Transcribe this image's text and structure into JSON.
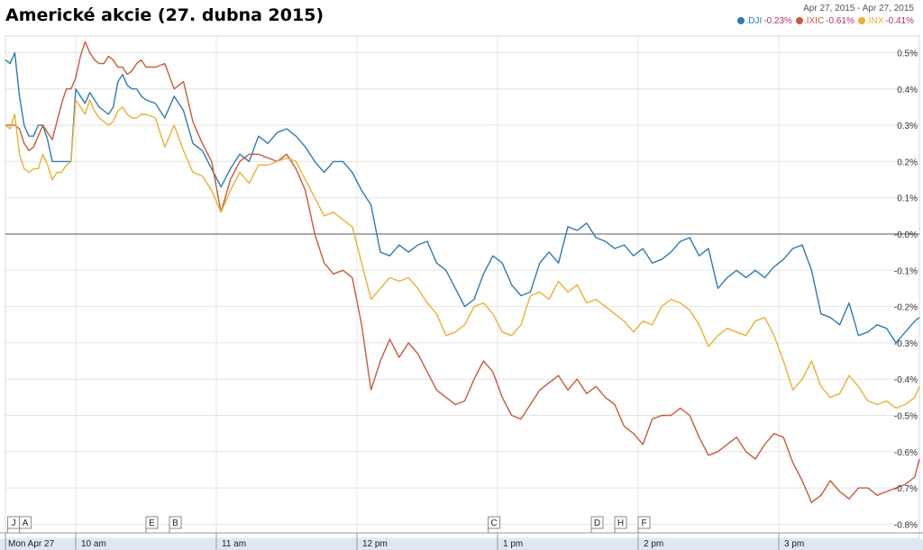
{
  "chart_data": {
    "type": "line",
    "title": "Americké akcie (27. dubna 2015)",
    "date_range": "Apr 27, 2015  -  Apr 27, 2015",
    "y_ticks": [
      "0.5%",
      "0.4%",
      "0.3%",
      "0.2%",
      "0.1%",
      "-0.0%",
      "-0.1%",
      "-0.2%",
      "-0.3%",
      "-0.4%",
      "-0.5%",
      "-0.6%",
      "-0.7%",
      "-0.8%"
    ],
    "y_tick_values": [
      0.5,
      0.4,
      0.3,
      0.2,
      0.1,
      0.0,
      -0.1,
      -0.2,
      -0.3,
      -0.4,
      -0.5,
      -0.6,
      -0.7,
      -0.8
    ],
    "ylim": [
      -0.85,
      0.56
    ],
    "x_ticks": [
      {
        "label": "Mon Apr 27",
        "t": 0
      },
      {
        "label": "10 am",
        "t": 30
      },
      {
        "label": "11 am",
        "t": 90
      },
      {
        "label": "12 pm",
        "t": 150
      },
      {
        "label": "1 pm",
        "t": 210
      },
      {
        "label": "2 pm",
        "t": 270
      },
      {
        "label": "3 pm",
        "t": 330
      }
    ],
    "x_unit": "minutes since 9:30 am",
    "xlim": [
      0,
      390
    ],
    "flags": [
      {
        "label": "J",
        "t": 1
      },
      {
        "label": "A",
        "t": 6
      },
      {
        "label": "E",
        "t": 60
      },
      {
        "label": "B",
        "t": 70
      },
      {
        "label": "C",
        "t": 206
      },
      {
        "label": "D",
        "t": 250
      },
      {
        "label": "H",
        "t": 260
      },
      {
        "label": "F",
        "t": 270
      }
    ],
    "grid": true,
    "legend_position": "top-right",
    "series": [
      {
        "name": ".DJI",
        "change": "-0.23%",
        "color": "#2e7bb4",
        "x": [
          0,
          2,
          4,
          6,
          8,
          10,
          12,
          14,
          16,
          18,
          20,
          22,
          24,
          26,
          28,
          30,
          32,
          34,
          36,
          38,
          40,
          42,
          44,
          46,
          48,
          50,
          52,
          54,
          56,
          58,
          60,
          64,
          68,
          72,
          76,
          80,
          84,
          88,
          92,
          96,
          100,
          104,
          108,
          112,
          116,
          120,
          124,
          128,
          132,
          136,
          140,
          144,
          148,
          152,
          156,
          160,
          164,
          168,
          172,
          176,
          180,
          184,
          188,
          192,
          196,
          200,
          204,
          208,
          212,
          216,
          220,
          224,
          228,
          232,
          236,
          240,
          244,
          248,
          252,
          256,
          260,
          264,
          268,
          272,
          276,
          280,
          284,
          288,
          292,
          296,
          300,
          304,
          308,
          312,
          316,
          320,
          324,
          328,
          332,
          336,
          340,
          344,
          348,
          352,
          356,
          360,
          364,
          368,
          372,
          376,
          380,
          384,
          388,
          390
        ],
        "values": [
          0.48,
          0.47,
          0.5,
          0.38,
          0.3,
          0.27,
          0.27,
          0.3,
          0.3,
          0.26,
          0.2,
          0.2,
          0.2,
          0.2,
          0.2,
          0.4,
          0.38,
          0.36,
          0.39,
          0.37,
          0.35,
          0.34,
          0.33,
          0.35,
          0.42,
          0.44,
          0.41,
          0.4,
          0.4,
          0.38,
          0.37,
          0.36,
          0.32,
          0.38,
          0.34,
          0.25,
          0.23,
          0.18,
          0.13,
          0.18,
          0.22,
          0.2,
          0.27,
          0.25,
          0.28,
          0.29,
          0.27,
          0.24,
          0.2,
          0.17,
          0.2,
          0.2,
          0.17,
          0.12,
          0.08,
          -0.05,
          -0.06,
          -0.03,
          -0.05,
          -0.03,
          -0.02,
          -0.08,
          -0.1,
          -0.15,
          -0.2,
          -0.18,
          -0.11,
          -0.06,
          -0.08,
          -0.14,
          -0.17,
          -0.16,
          -0.08,
          -0.05,
          -0.08,
          0.02,
          0.01,
          0.03,
          -0.01,
          -0.02,
          -0.04,
          -0.03,
          -0.06,
          -0.04,
          -0.08,
          -0.07,
          -0.05,
          -0.02,
          -0.01,
          -0.06,
          -0.04,
          -0.15,
          -0.12,
          -0.1,
          -0.12,
          -0.1,
          -0.12,
          -0.09,
          -0.07,
          -0.04,
          -0.03,
          -0.1,
          -0.22,
          -0.23,
          -0.25,
          -0.19,
          -0.28,
          -0.27,
          -0.25,
          -0.26,
          -0.3,
          -0.27,
          -0.24,
          -0.23
        ]
      },
      {
        "name": ".IXIC",
        "change": "-0.61%",
        "color": "#c75b39",
        "x": [
          0,
          2,
          4,
          6,
          8,
          10,
          12,
          14,
          16,
          18,
          20,
          22,
          24,
          26,
          28,
          30,
          32,
          34,
          36,
          38,
          40,
          42,
          44,
          46,
          48,
          50,
          52,
          54,
          56,
          58,
          60,
          64,
          68,
          72,
          76,
          80,
          84,
          88,
          92,
          96,
          100,
          104,
          108,
          112,
          116,
          120,
          124,
          128,
          132,
          136,
          140,
          144,
          148,
          152,
          156,
          160,
          164,
          168,
          172,
          176,
          180,
          184,
          188,
          192,
          196,
          200,
          204,
          208,
          212,
          216,
          220,
          224,
          228,
          232,
          236,
          240,
          244,
          248,
          252,
          256,
          260,
          264,
          268,
          272,
          276,
          280,
          284,
          288,
          292,
          296,
          300,
          304,
          308,
          312,
          316,
          320,
          324,
          328,
          332,
          336,
          340,
          344,
          348,
          352,
          356,
          360,
          364,
          368,
          372,
          376,
          380,
          384,
          388,
          390
        ],
        "values": [
          0.3,
          0.3,
          0.3,
          0.29,
          0.25,
          0.23,
          0.24,
          0.27,
          0.3,
          0.28,
          0.26,
          0.31,
          0.36,
          0.4,
          0.4,
          0.43,
          0.49,
          0.53,
          0.5,
          0.48,
          0.47,
          0.47,
          0.49,
          0.48,
          0.46,
          0.46,
          0.44,
          0.45,
          0.47,
          0.48,
          0.46,
          0.46,
          0.47,
          0.4,
          0.42,
          0.31,
          0.25,
          0.2,
          0.06,
          0.15,
          0.2,
          0.22,
          0.22,
          0.21,
          0.2,
          0.22,
          0.18,
          0.12,
          0.0,
          -0.08,
          -0.11,
          -0.1,
          -0.12,
          -0.25,
          -0.43,
          -0.35,
          -0.29,
          -0.34,
          -0.3,
          -0.33,
          -0.38,
          -0.43,
          -0.45,
          -0.47,
          -0.46,
          -0.4,
          -0.35,
          -0.38,
          -0.45,
          -0.5,
          -0.51,
          -0.47,
          -0.43,
          -0.41,
          -0.39,
          -0.43,
          -0.4,
          -0.44,
          -0.42,
          -0.45,
          -0.47,
          -0.53,
          -0.55,
          -0.58,
          -0.51,
          -0.5,
          -0.5,
          -0.48,
          -0.5,
          -0.56,
          -0.61,
          -0.6,
          -0.58,
          -0.56,
          -0.6,
          -0.62,
          -0.58,
          -0.55,
          -0.56,
          -0.63,
          -0.68,
          -0.74,
          -0.72,
          -0.68,
          -0.71,
          -0.73,
          -0.7,
          -0.7,
          -0.72,
          -0.71,
          -0.7,
          -0.69,
          -0.67,
          -0.62
        ]
      },
      {
        "name": ".INX",
        "change": "-0.41%",
        "color": "#e8b232",
        "x": [
          0,
          2,
          4,
          6,
          8,
          10,
          12,
          14,
          16,
          18,
          20,
          22,
          24,
          26,
          28,
          30,
          32,
          34,
          36,
          38,
          40,
          42,
          44,
          46,
          48,
          50,
          52,
          54,
          56,
          58,
          60,
          64,
          68,
          72,
          76,
          80,
          84,
          88,
          92,
          96,
          100,
          104,
          108,
          112,
          116,
          120,
          124,
          128,
          132,
          136,
          140,
          144,
          148,
          152,
          156,
          160,
          164,
          168,
          172,
          176,
          180,
          184,
          188,
          192,
          196,
          200,
          204,
          208,
          212,
          216,
          220,
          224,
          228,
          232,
          236,
          240,
          244,
          248,
          252,
          256,
          260,
          264,
          268,
          272,
          276,
          280,
          284,
          288,
          292,
          296,
          300,
          304,
          308,
          312,
          316,
          320,
          324,
          328,
          332,
          336,
          340,
          344,
          348,
          352,
          356,
          360,
          364,
          368,
          372,
          376,
          380,
          384,
          388,
          390
        ],
        "values": [
          0.3,
          0.29,
          0.33,
          0.22,
          0.18,
          0.17,
          0.18,
          0.18,
          0.22,
          0.19,
          0.15,
          0.17,
          0.17,
          0.19,
          0.2,
          0.37,
          0.35,
          0.33,
          0.37,
          0.34,
          0.32,
          0.31,
          0.3,
          0.31,
          0.34,
          0.35,
          0.33,
          0.32,
          0.32,
          0.33,
          0.33,
          0.32,
          0.24,
          0.3,
          0.23,
          0.17,
          0.16,
          0.12,
          0.06,
          0.12,
          0.17,
          0.14,
          0.19,
          0.19,
          0.2,
          0.21,
          0.2,
          0.15,
          0.1,
          0.05,
          0.06,
          0.04,
          0.02,
          -0.08,
          -0.18,
          -0.15,
          -0.12,
          -0.13,
          -0.12,
          -0.15,
          -0.19,
          -0.22,
          -0.28,
          -0.27,
          -0.25,
          -0.2,
          -0.19,
          -0.22,
          -0.27,
          -0.28,
          -0.25,
          -0.17,
          -0.16,
          -0.18,
          -0.13,
          -0.16,
          -0.14,
          -0.19,
          -0.18,
          -0.2,
          -0.22,
          -0.24,
          -0.27,
          -0.24,
          -0.25,
          -0.2,
          -0.18,
          -0.19,
          -0.21,
          -0.25,
          -0.31,
          -0.28,
          -0.26,
          -0.27,
          -0.28,
          -0.24,
          -0.23,
          -0.28,
          -0.35,
          -0.43,
          -0.4,
          -0.35,
          -0.42,
          -0.45,
          -0.44,
          -0.39,
          -0.42,
          -0.46,
          -0.47,
          -0.46,
          -0.48,
          -0.47,
          -0.45,
          -0.42
        ]
      }
    ]
  }
}
